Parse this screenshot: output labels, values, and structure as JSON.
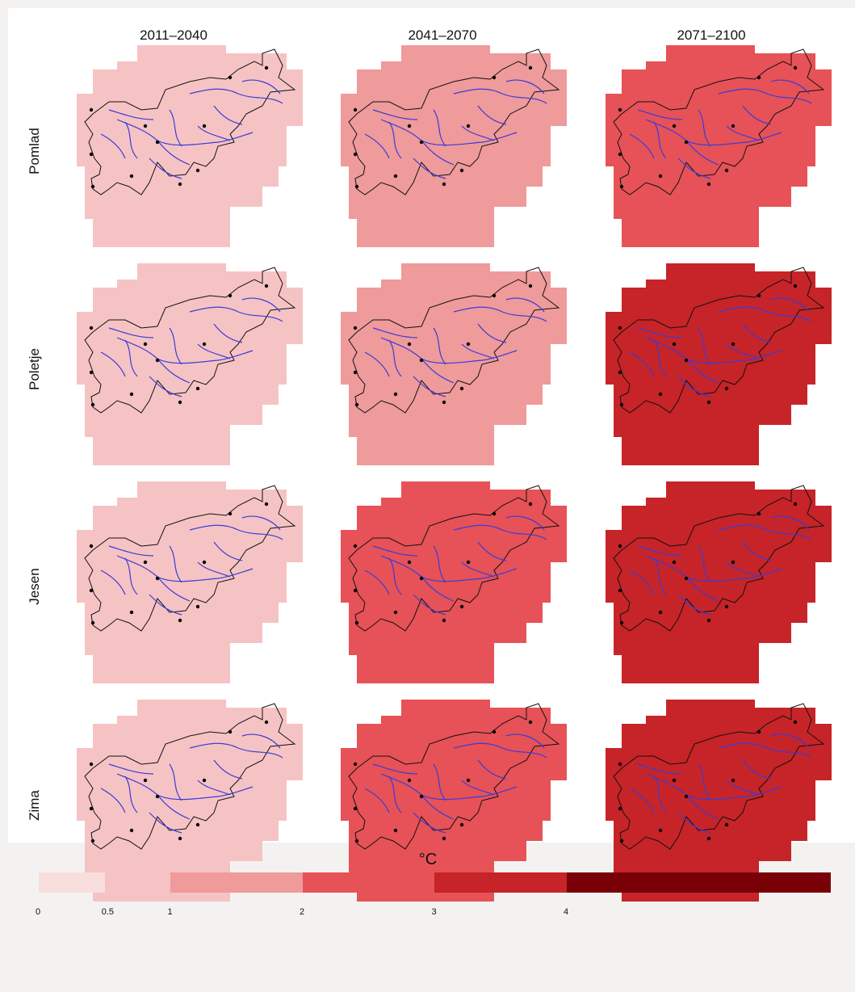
{
  "columns": [
    "2011–2040",
    "2041–2070",
    "2071–2100"
  ],
  "rows": [
    "Pomlad",
    "Poletje",
    "Jesen",
    "Zima"
  ],
  "palette": {
    "c0": "#f9dede",
    "c1": "#f6c3c4",
    "c2": "#ef9a9b",
    "c3": "#e65257",
    "c4": "#c62428",
    "c5": "#7a0008"
  },
  "legend": {
    "unit": "°C",
    "ticks": [
      "0",
      "0.5",
      "1",
      "2",
      "3",
      "4"
    ],
    "bins": [
      {
        "from": 0,
        "to": 0.5,
        "color_key": "c0"
      },
      {
        "from": 0.5,
        "to": 1,
        "color_key": "c1"
      },
      {
        "from": 1,
        "to": 2,
        "color_key": "c2"
      },
      {
        "from": 2,
        "to": 3,
        "color_key": "c3"
      },
      {
        "from": 3,
        "to": 4,
        "color_key": "c4"
      },
      {
        "from": 4,
        "to": null,
        "color_key": "c5"
      }
    ]
  },
  "maps": [
    {
      "row": "Pomlad",
      "column": "2011–2040",
      "fill_key": "c1"
    },
    {
      "row": "Pomlad",
      "column": "2041–2070",
      "fill_key": "c2"
    },
    {
      "row": "Pomlad",
      "column": "2071–2100",
      "fill_key": "c3"
    },
    {
      "row": "Poletje",
      "column": "2011–2040",
      "fill_key": "c1"
    },
    {
      "row": "Poletje",
      "column": "2041–2070",
      "fill_key": "c2"
    },
    {
      "row": "Poletje",
      "column": "2071–2100",
      "fill_key": "c4"
    },
    {
      "row": "Jesen",
      "column": "2011–2040",
      "fill_key": "c1"
    },
    {
      "row": "Jesen",
      "column": "2041–2070",
      "fill_key": "c3"
    },
    {
      "row": "Jesen",
      "column": "2071–2100",
      "fill_key": "c4"
    },
    {
      "row": "Zima",
      "column": "2011–2040",
      "fill_key": "c1"
    },
    {
      "row": "Zima",
      "column": "2041–2070",
      "fill_key": "c3"
    },
    {
      "row": "Zima",
      "column": "2071–2100",
      "fill_key": "c4"
    }
  ],
  "colors": {
    "river": "#3b3bd6",
    "border": "#111111",
    "station": "#000000"
  }
}
